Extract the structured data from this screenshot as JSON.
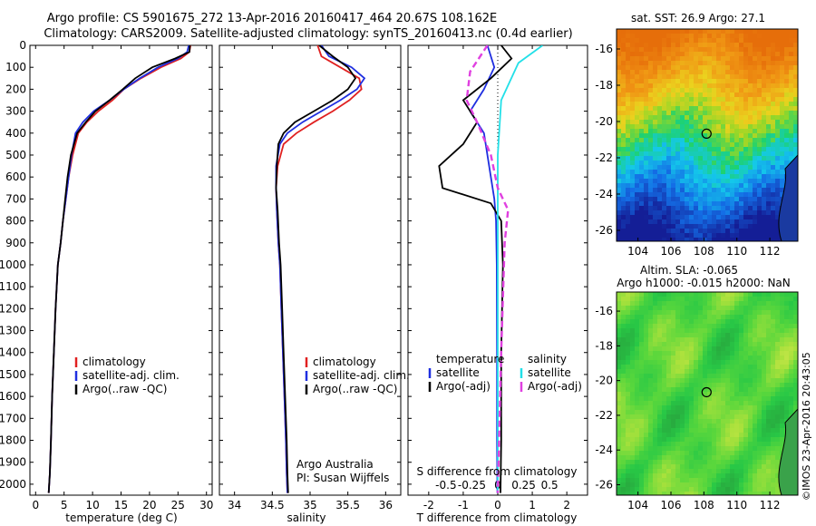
{
  "header": {
    "title_line1": "Argo profile: CS 5901675_272 13-Apr-2016 20160417_464 20.67S 108.162E",
    "title_line2": "Climatology: CARS2009. Satellite-adjusted climatology: synTS_20160413.nc (0.4d earlier)"
  },
  "colors": {
    "climatology": "#e02020",
    "satellite": "#1f2fe0",
    "argo": "#000000",
    "sal_satellite": "#22e0e8",
    "sal_argo": "#e040e0"
  },
  "depth_axis": {
    "ylim": [
      0,
      2050
    ],
    "ticks": [
      0,
      100,
      200,
      300,
      400,
      500,
      600,
      700,
      800,
      900,
      1000,
      1100,
      1200,
      1300,
      1400,
      1500,
      1600,
      1700,
      1800,
      1900,
      2000
    ]
  },
  "temperature_panel": {
    "xlabel": "temperature (deg C)",
    "xlim": [
      -1,
      31
    ],
    "xticks": [
      0,
      5,
      10,
      15,
      20,
      25,
      30
    ],
    "legend": [
      "climatology",
      "satellite-adj. clim.",
      "Argo(..raw -QC)"
    ]
  },
  "salinity_panel": {
    "xlabel": "salinity",
    "xlim": [
      33.8,
      36.2
    ],
    "xticks": [
      "34",
      "34.5",
      "35",
      "35.5",
      "36"
    ],
    "xtick_values": [
      34,
      34.5,
      35,
      35.5,
      36
    ],
    "legend": [
      "climatology",
      "satellite-adj. clim.",
      "Argo(..raw -QC)"
    ],
    "annotation_line1": "Argo Australia",
    "annotation_line2": "PI: Susan Wijffels"
  },
  "difference_panel": {
    "xlabel": "T difference from climatology",
    "top_label": "S difference from climatology",
    "xlim": [
      -2.6,
      2.6
    ],
    "t_ticks": [
      "-2",
      "-1",
      "0",
      "1",
      "2"
    ],
    "t_tick_values": [
      -2,
      -1,
      0,
      1,
      2
    ],
    "s_ticks": [
      "-0.5",
      "-0.25",
      "0",
      "0.25",
      "0.5"
    ],
    "s_tick_positions": [
      -1.5,
      -0.75,
      0,
      0.75,
      1.5
    ],
    "legend_temperature_title": "temperature",
    "legend_salinity_title": "salinity",
    "legend_temperature_items": [
      "satellite",
      "Argo(-adj)"
    ],
    "legend_salinity_items": [
      "satellite",
      "Argo(-adj)"
    ]
  },
  "sst_map": {
    "title": "sat. SST: 26.9 Argo: 27.1",
    "xticks": [
      "104",
      "106",
      "108",
      "110",
      "112"
    ],
    "xtick_values": [
      104,
      106,
      108,
      110,
      112
    ],
    "yticks": [
      "-16",
      "-18",
      "-20",
      "-22",
      "-24",
      "-26"
    ],
    "ytick_values": [
      -16,
      -18,
      -20,
      -22,
      -24,
      -26
    ],
    "lon_range": [
      102.7,
      113.7
    ],
    "lat_range": [
      -26.6,
      -14.9
    ],
    "float_position": {
      "lon": 108.162,
      "lat": -20.67
    }
  },
  "sla_map": {
    "title_line1": "Altim. SLA: -0.065",
    "title_line2": "Argo h1000: -0.015 h2000: NaN",
    "xticks": [
      "104",
      "106",
      "108",
      "110",
      "112"
    ],
    "xtick_values": [
      104,
      106,
      108,
      110,
      112
    ],
    "yticks": [
      "-16",
      "-18",
      "-20",
      "-22",
      "-24",
      "-26"
    ],
    "ytick_values": [
      -16,
      -18,
      -20,
      -22,
      -24,
      -26
    ],
    "lon_range": [
      102.7,
      113.7
    ],
    "lat_range": [
      -26.6,
      -14.9
    ],
    "float_position": {
      "lon": 108.162,
      "lat": -20.67
    }
  },
  "watermark": "©IMOS 23-Apr-2016 20:43:05",
  "chart_data": [
    {
      "type": "line",
      "title": "",
      "xlabel": "temperature (deg C)",
      "ylabel": "",
      "xlim": [
        -1,
        31
      ],
      "ylim": [
        2050,
        0
      ],
      "series": [
        {
          "name": "climatology",
          "x": [
            27.2,
            27.0,
            25.5,
            22.0,
            18.5,
            15.5,
            13.5,
            11.0,
            9.0,
            7.5,
            6.5,
            5.8,
            5.3,
            4.8,
            4.4,
            3.9,
            3.5,
            3.2,
            2.9,
            2.7,
            2.5,
            2.3
          ],
          "y": [
            0,
            30,
            60,
            100,
            150,
            200,
            250,
            300,
            350,
            400,
            500,
            600,
            700,
            800,
            900,
            1000,
            1200,
            1400,
            1600,
            1800,
            1950,
            2040
          ]
        },
        {
          "name": "satellite-adj. clim.",
          "x": [
            26.9,
            26.6,
            25.0,
            21.5,
            18.3,
            15.5,
            13.0,
            10.2,
            8.3,
            7.0,
            6.3,
            5.8,
            5.3,
            4.8,
            4.4,
            3.9,
            3.5,
            3.2,
            2.9,
            2.7,
            2.5,
            2.3
          ],
          "y": [
            0,
            30,
            60,
            100,
            150,
            200,
            250,
            300,
            350,
            400,
            500,
            600,
            700,
            800,
            900,
            1000,
            1200,
            1400,
            1600,
            1800,
            1950,
            2040
          ]
        },
        {
          "name": "Argo(..raw -QC)",
          "x": [
            27.1,
            27.0,
            24.5,
            20.5,
            17.5,
            15.3,
            13.0,
            10.5,
            8.8,
            7.3,
            6.2,
            5.6,
            5.2,
            4.8,
            4.4,
            3.9,
            3.5,
            3.2,
            2.9,
            2.7,
            2.5,
            2.3
          ],
          "y": [
            0,
            30,
            60,
            100,
            150,
            200,
            250,
            300,
            350,
            400,
            500,
            600,
            700,
            800,
            900,
            1000,
            1200,
            1400,
            1600,
            1800,
            1950,
            2040
          ]
        }
      ]
    },
    {
      "type": "line",
      "title": "",
      "xlabel": "salinity",
      "ylabel": "",
      "xlim": [
        33.8,
        36.2
      ],
      "ylim": [
        2050,
        0
      ],
      "series": [
        {
          "name": "climatology",
          "x": [
            35.1,
            35.15,
            35.4,
            35.65,
            35.68,
            35.52,
            35.3,
            35.05,
            34.82,
            34.65,
            34.57,
            34.55,
            34.56,
            34.58,
            34.6,
            34.62,
            34.64,
            34.66,
            34.68,
            34.69,
            34.7
          ],
          "y": [
            0,
            50,
            100,
            150,
            200,
            250,
            300,
            350,
            400,
            450,
            550,
            650,
            750,
            900,
            1000,
            1200,
            1400,
            1600,
            1800,
            1950,
            2040
          ]
        },
        {
          "name": "satellite-adj. clim.",
          "x": [
            35.15,
            35.25,
            35.55,
            35.72,
            35.62,
            35.4,
            35.15,
            34.9,
            34.7,
            34.6,
            34.55,
            34.55,
            34.56,
            34.58,
            34.6,
            34.62,
            34.64,
            34.66,
            34.68,
            34.69,
            34.7
          ],
          "y": [
            0,
            50,
            100,
            150,
            200,
            250,
            300,
            350,
            400,
            450,
            550,
            650,
            750,
            900,
            1000,
            1200,
            1400,
            1600,
            1800,
            1950,
            2040
          ]
        },
        {
          "name": "Argo(..raw -QC)",
          "x": [
            35.12,
            35.3,
            35.5,
            35.6,
            35.5,
            35.3,
            35.05,
            34.8,
            34.65,
            34.58,
            34.56,
            34.55,
            34.57,
            34.59,
            34.61,
            34.63,
            34.65,
            34.67,
            34.69,
            34.7,
            34.71
          ],
          "y": [
            0,
            50,
            100,
            150,
            200,
            250,
            300,
            350,
            400,
            450,
            550,
            650,
            750,
            900,
            1000,
            1200,
            1400,
            1600,
            1800,
            1950,
            2040
          ]
        }
      ]
    },
    {
      "type": "line",
      "title": "",
      "xlabel": "T difference from climatology",
      "ylabel": "",
      "xlim": [
        -2.6,
        2.6
      ],
      "ylim": [
        2050,
        0
      ],
      "series": [
        {
          "name": "temperature satellite",
          "x": [
            -0.3,
            -0.1,
            -0.4,
            -0.6,
            -0.8,
            -0.4,
            -0.2,
            -0.1,
            -0.05,
            -0.03,
            -0.02,
            -0.02,
            -0.01
          ],
          "y": [
            0,
            100,
            200,
            250,
            300,
            400,
            600,
            700,
            800,
            1000,
            1400,
            1800,
            2040
          ]
        },
        {
          "name": "temperature Argo(-adj)",
          "x": [
            0.1,
            0.4,
            -0.2,
            -1.0,
            -0.6,
            -1.0,
            -1.7,
            -1.6,
            -0.2,
            0.1,
            0.15,
            0.1,
            0.1,
            0.08
          ],
          "y": [
            0,
            60,
            150,
            250,
            350,
            450,
            550,
            650,
            720,
            800,
            1000,
            1400,
            1800,
            2040
          ]
        },
        {
          "name": "salinity satellite",
          "x": [
            1.3,
            0.6,
            0.1,
            0.0,
            0.0,
            0.0,
            0.0,
            0.0
          ],
          "y": [
            0,
            80,
            250,
            500,
            800,
            1200,
            1600,
            2040
          ]
        },
        {
          "name": "salinity Argo(-adj)",
          "x": [
            -0.3,
            -0.8,
            -0.9,
            -0.6,
            -0.2,
            0.0,
            0.3,
            0.2,
            0.1,
            0.0
          ],
          "y": [
            0,
            120,
            250,
            350,
            500,
            650,
            750,
            900,
            1400,
            2040
          ]
        }
      ]
    }
  ]
}
